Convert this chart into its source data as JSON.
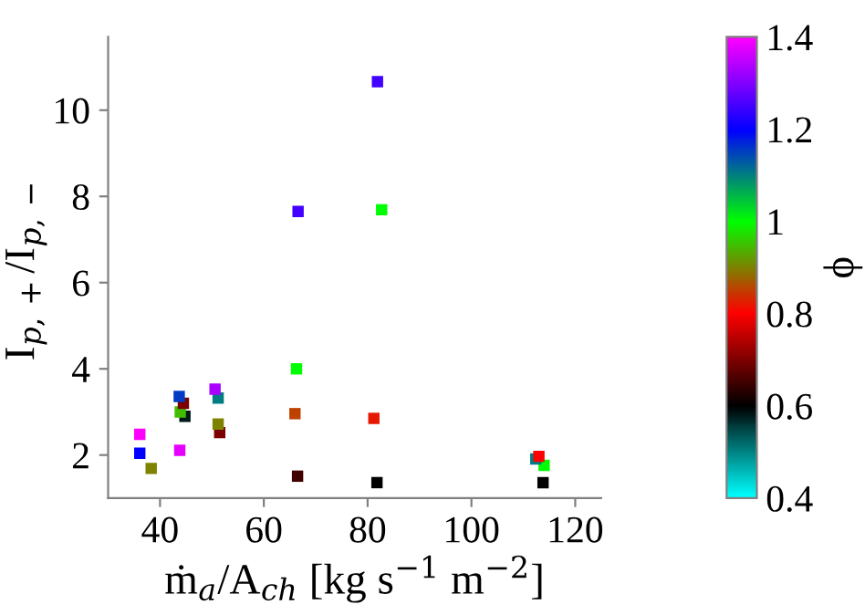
{
  "chart_data": {
    "type": "scatter",
    "xlabel": "ṁ$_{a}$/A$_{ch}$ [kg s$^{−1}$ m$^{−2}$]",
    "ylabel": "I$_{p,+}$/I$_{p,−}$",
    "clabel": "ϕ",
    "x": [
      36.1,
      36.1,
      38.3,
      43.7,
      44.5,
      43.9,
      44.8,
      43.8,
      50.6,
      51.2,
      51.2,
      51.5,
      66.6,
      66.3,
      66.0,
      66.5,
      81.9,
      82.7,
      81.2,
      81.8,
      113.0,
      112.4,
      114.0,
      113.8
    ],
    "values": [
      2.48,
      2.04,
      1.69,
      3.36,
      3.2,
      3.0,
      2.9,
      2.11,
      3.53,
      3.32,
      2.72,
      2.52,
      7.65,
      4.0,
      2.96,
      1.51,
      10.66,
      7.69,
      2.85,
      1.36,
      1.97,
      1.91,
      1.76,
      1.36
    ],
    "cvalues": [
      1.4,
      1.2,
      0.9,
      1.15,
      0.7,
      0.95,
      0.58,
      1.38,
      1.33,
      1.1,
      0.9,
      0.7,
      1.25,
      1.0,
      0.85,
      0.65,
      1.25,
      1.0,
      0.82,
      0.6,
      0.8,
      1.1,
      1.0,
      0.6
    ],
    "xlim": [
      30,
      125
    ],
    "xticks": [
      40,
      60,
      80,
      100,
      120
    ],
    "ylim": [
      1,
      11.7
    ],
    "yticks": [
      2,
      4,
      6,
      8,
      10
    ],
    "clim": [
      0.4,
      1.4
    ],
    "cticks": [
      0.4,
      0.6,
      0.8,
      1,
      1.2,
      1.4
    ],
    "marker": "square",
    "grid": false,
    "legend": false
  }
}
